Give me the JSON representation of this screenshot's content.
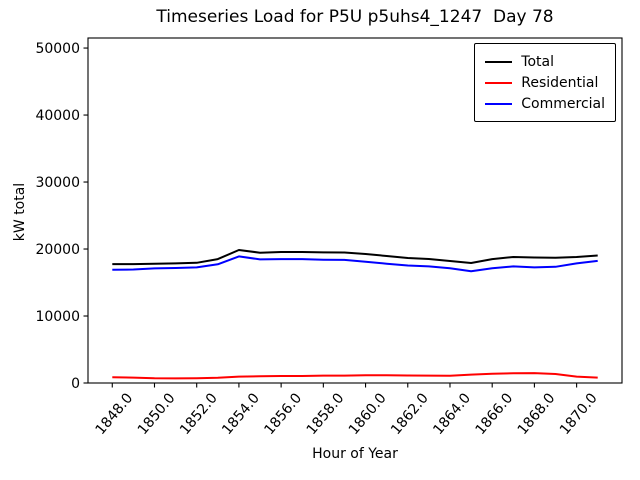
{
  "chart_data": {
    "type": "line",
    "title": "Timeseries Load for P5U p5uhs4_1247  Day 78",
    "xlabel": "Hour of Year",
    "ylabel": "kW total",
    "grid": false,
    "legend_position": "upper right",
    "xlim": [
      1846.85,
      1872.15
    ],
    "ylim": [
      0,
      51500
    ],
    "xticks": {
      "values": [
        1848,
        1850,
        1852,
        1854,
        1856,
        1858,
        1860,
        1862,
        1864,
        1866,
        1868,
        1870
      ],
      "labels": [
        "1848.0",
        "1850.0",
        "1852.0",
        "1854.0",
        "1856.0",
        "1858.0",
        "1860.0",
        "1862.0",
        "1864.0",
        "1866.0",
        "1868.0",
        "1870.0"
      ]
    },
    "yticks": {
      "values": [
        0,
        10000,
        20000,
        30000,
        40000,
        50000
      ],
      "labels": [
        "0",
        "10000",
        "20000",
        "30000",
        "40000",
        "50000"
      ]
    },
    "x": [
      1848,
      1849,
      1850,
      1851,
      1852,
      1853,
      1854,
      1855,
      1856,
      1857,
      1858,
      1859,
      1860,
      1861,
      1862,
      1863,
      1864,
      1865,
      1866,
      1867,
      1868,
      1869,
      1870,
      1871
    ],
    "series": [
      {
        "name": "Total",
        "color": "#000000",
        "values": [
          17750,
          17750,
          17800,
          17850,
          17950,
          18500,
          19850,
          19450,
          19550,
          19550,
          19500,
          19480,
          19260,
          18960,
          18660,
          18510,
          18210,
          17920,
          18500,
          18810,
          18740,
          18700,
          18810,
          19030
        ]
      },
      {
        "name": "Residential",
        "color": "#ff0000",
        "values": [
          850,
          800,
          700,
          680,
          700,
          780,
          950,
          1000,
          1050,
          1050,
          1100,
          1100,
          1150,
          1150,
          1120,
          1100,
          1080,
          1250,
          1380,
          1450,
          1480,
          1350,
          950,
          800
        ]
      },
      {
        "name": "Commercial",
        "color": "#0000ff",
        "values": [
          16900,
          16950,
          17100,
          17170,
          17250,
          17720,
          18900,
          18450,
          18500,
          18500,
          18400,
          18380,
          18110,
          17810,
          17540,
          17410,
          17130,
          16670,
          17120,
          17410,
          17260,
          17350,
          17860,
          18230
        ]
      }
    ]
  }
}
